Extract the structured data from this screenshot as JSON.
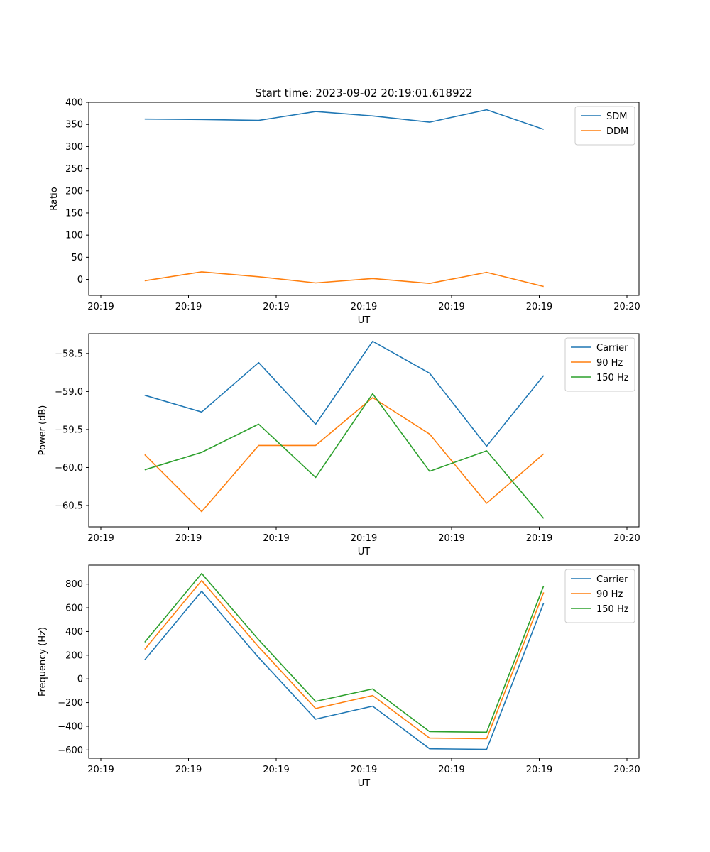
{
  "title": "Start time: 2023-09-02 20:19:01.618922",
  "chart_data": [
    {
      "type": "line",
      "title": "Start time: 2023-09-02 20:19:01.618922",
      "xlabel": "UT",
      "ylabel": "Ratio",
      "x": [
        0.5,
        1.15,
        1.8,
        2.45,
        3.1,
        3.75,
        4.4,
        5.05
      ],
      "xlim": [
        0,
        6
      ],
      "xticks": [
        0,
        1,
        2,
        3,
        4,
        5,
        6
      ],
      "xtick_labels": [
        "20:19",
        "20:19",
        "20:19",
        "20:19",
        "20:19",
        "20:19",
        "20:20"
      ],
      "ylim": [
        -36,
        400
      ],
      "yticks": [
        0,
        50,
        100,
        150,
        200,
        250,
        300,
        350,
        400
      ],
      "ytick_labels": [
        "0",
        "50",
        "100",
        "150",
        "200",
        "250",
        "300",
        "350",
        "400"
      ],
      "legend": "upper right",
      "series": [
        {
          "name": "SDM",
          "color": "#1f77b4",
          "values": [
            362,
            361,
            359,
            379,
            369,
            355,
            383,
            339
          ]
        },
        {
          "name": "DDM",
          "color": "#ff7f0e",
          "values": [
            -3,
            17,
            6,
            -8,
            2,
            -9,
            16,
            -16
          ]
        }
      ]
    },
    {
      "type": "line",
      "title": "",
      "xlabel": "UT",
      "ylabel": "Power (dB)",
      "x": [
        0.5,
        1.15,
        1.8,
        2.45,
        3.1,
        3.75,
        4.4,
        5.05
      ],
      "xlim": [
        0,
        6
      ],
      "xticks": [
        0,
        1,
        2,
        3,
        4,
        5,
        6
      ],
      "xtick_labels": [
        "20:19",
        "20:19",
        "20:19",
        "20:19",
        "20:19",
        "20:19",
        "20:20"
      ],
      "ylim": [
        -60.78,
        -58.24
      ],
      "yticks": [
        -60.5,
        -60.0,
        -59.5,
        -59.0,
        -58.5
      ],
      "ytick_labels": [
        "−60.5",
        "−60.0",
        "−59.5",
        "−59.0",
        "−58.5"
      ],
      "legend": "upper right",
      "series": [
        {
          "name": "Carrier",
          "color": "#1f77b4",
          "values": [
            -59.05,
            -59.27,
            -58.62,
            -59.43,
            -58.34,
            -58.76,
            -59.72,
            -58.79
          ]
        },
        {
          "name": "90 Hz",
          "color": "#ff7f0e",
          "values": [
            -59.83,
            -60.58,
            -59.71,
            -59.71,
            -59.08,
            -59.56,
            -60.47,
            -59.82
          ]
        },
        {
          "name": "150 Hz",
          "color": "#2ca02c",
          "values": [
            -60.03,
            -59.8,
            -59.43,
            -60.13,
            -59.03,
            -60.05,
            -59.78,
            -60.67
          ]
        }
      ]
    },
    {
      "type": "line",
      "title": "",
      "xlabel": "UT",
      "ylabel": "Frequency (Hz)",
      "x": [
        0.5,
        1.15,
        1.8,
        2.45,
        3.1,
        3.75,
        4.4,
        5.05
      ],
      "xlim": [
        0,
        6
      ],
      "xticks": [
        0,
        1,
        2,
        3,
        4,
        5,
        6
      ],
      "xtick_labels": [
        "20:19",
        "20:19",
        "20:19",
        "20:19",
        "20:19",
        "20:19",
        "20:20"
      ],
      "ylim": [
        -670,
        960
      ],
      "yticks": [
        -600,
        -400,
        -200,
        0,
        200,
        400,
        600,
        800
      ],
      "ytick_labels": [
        "−600",
        "−400",
        "−200",
        "0",
        "200",
        "400",
        "600",
        "800"
      ],
      "legend": "upper right",
      "series": [
        {
          "name": "Carrier",
          "color": "#1f77b4",
          "values": [
            160,
            740,
            180,
            -340,
            -230,
            -590,
            -595,
            640
          ]
        },
        {
          "name": "90 Hz",
          "color": "#ff7f0e",
          "values": [
            250,
            830,
            270,
            -250,
            -140,
            -500,
            -505,
            730
          ]
        },
        {
          "name": "150 Hz",
          "color": "#2ca02c",
          "values": [
            310,
            890,
            330,
            -190,
            -85,
            -445,
            -450,
            785
          ]
        }
      ]
    }
  ]
}
